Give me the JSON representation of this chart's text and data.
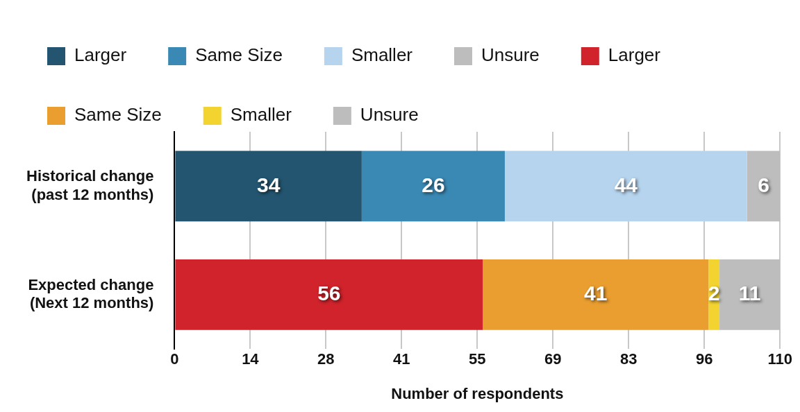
{
  "chart_data": {
    "type": "bar",
    "orientation": "horizontal",
    "stacked": true,
    "xlabel": "Number of respondents",
    "categories": [
      "Historical change\n(past 12 months)",
      "Expected change\n(Next 12 months)"
    ],
    "series": [
      {
        "name": "Larger",
        "color": "#235570",
        "values": [
          34,
          null
        ]
      },
      {
        "name": "Same Size",
        "color": "#3a89b4",
        "values": [
          26,
          null
        ]
      },
      {
        "name": "Smaller",
        "color": "#b6d4ee",
        "values": [
          44,
          null
        ]
      },
      {
        "name": "Unsure",
        "color": "#bdbdbd",
        "values": [
          6,
          null
        ]
      },
      {
        "name": "Larger",
        "color": "#d0232b",
        "values": [
          null,
          56
        ]
      },
      {
        "name": "Same Size",
        "color": "#ea9e30",
        "values": [
          null,
          41
        ]
      },
      {
        "name": "Smaller",
        "color": "#f2d330",
        "values": [
          null,
          2
        ]
      },
      {
        "name": "Unsure",
        "color": "#bdbdbd",
        "values": [
          null,
          11
        ]
      }
    ],
    "xlim": [
      0,
      110
    ],
    "xticks": [
      0,
      {
        "value": 13.75,
        "label": "14"
      },
      {
        "value": 27.5,
        "label": "28"
      },
      {
        "value": 41.25,
        "label": "41"
      },
      {
        "value": 55,
        "label": "55"
      },
      {
        "value": 68.75,
        "label": "69"
      },
      {
        "value": 82.5,
        "label": "83"
      },
      {
        "value": 96.25,
        "label": "96"
      },
      110
    ],
    "grid": "x",
    "legend": "top left",
    "data_labels": true
  }
}
